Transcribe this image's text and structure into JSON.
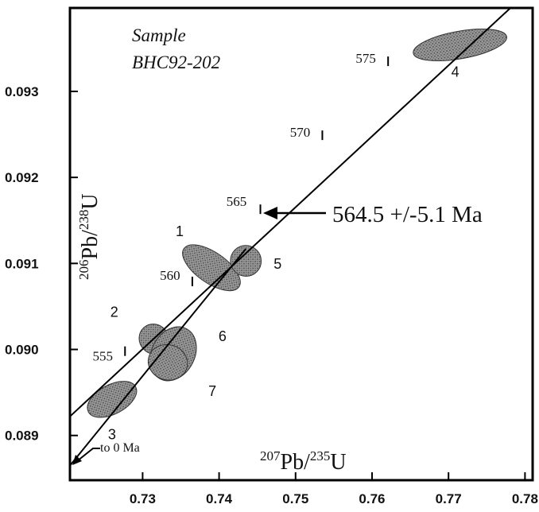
{
  "chart_data": {
    "type": "scatter",
    "title": "",
    "sample_label": [
      "Sample",
      "BHC92-202"
    ],
    "xlabel": {
      "pre": "207",
      "base": "Pb/",
      "sup2": "235",
      "tail": "U"
    },
    "ylabel": {
      "pre": "206",
      "base": "Pb/",
      "sup2": "238",
      "tail": "U"
    },
    "xlim": [
      0.7205,
      0.781
    ],
    "ylim": [
      0.08848,
      0.09397
    ],
    "x_ticks": [
      0.73,
      0.74,
      0.75,
      0.76,
      0.77,
      0.78
    ],
    "x_tick_labels": [
      "0.73",
      "0.74",
      "0.75",
      "0.76",
      "0.77",
      "0.78"
    ],
    "y_ticks": [
      0.089,
      0.09,
      0.091,
      0.092,
      0.093
    ],
    "y_tick_labels": [
      "0.089",
      "0.090",
      "0.091",
      "0.092",
      "0.093"
    ],
    "grid": false,
    "concordia": {
      "start": {
        "x": 0.72,
        "y": 0.08918
      },
      "end": {
        "x": 0.7781,
        "y": 0.09397
      },
      "age_marks": [
        {
          "label": "555",
          "x": 0.7277,
          "y": 0.08998
        },
        {
          "label": "560",
          "x": 0.7365,
          "y": 0.09079
        },
        {
          "label": "565",
          "x": 0.7454,
          "y": 0.09163
        },
        {
          "label": "570",
          "x": 0.7535,
          "y": 0.09249
        },
        {
          "label": "575",
          "x": 0.7621,
          "y": 0.09335
        }
      ]
    },
    "discordia": {
      "start": {
        "x": 0.7205,
        "y": 0.08865
      },
      "end": {
        "x": 0.7435,
        "y": 0.09117
      }
    },
    "ellipses": [
      {
        "label": "1",
        "cx": 0.739,
        "cy": 0.09095,
        "rx": 0.002,
        "ry": 0.00039,
        "angle": -55
      },
      {
        "label": "2",
        "cx": 0.7315,
        "cy": 0.09012,
        "rx": 0.0019,
        "ry": 0.00018,
        "angle": -42
      },
      {
        "label": "3",
        "cx": 0.726,
        "cy": 0.08942,
        "rx": 0.0035,
        "ry": 0.00017,
        "angle": -28
      },
      {
        "label": "4",
        "cx": 0.7715,
        "cy": 0.09354,
        "rx": 0.0062,
        "ry": 0.00016,
        "angle": -10
      },
      {
        "label": "5",
        "cx": 0.7435,
        "cy": 0.09103,
        "rx": 0.002,
        "ry": 0.00018,
        "angle": -45
      },
      {
        "label": "6",
        "cx": 0.734,
        "cy": 0.08995,
        "rx": 0.0037,
        "ry": 0.00025,
        "angle": -62
      },
      {
        "label": "7",
        "cx": 0.7333,
        "cy": 0.08985,
        "rx": 0.0023,
        "ry": 0.00023,
        "angle": -75
      }
    ],
    "annotations": {
      "age_result": "564.5 +/-5.1 Ma",
      "to_zero": "to 0 Ma"
    }
  }
}
